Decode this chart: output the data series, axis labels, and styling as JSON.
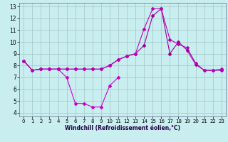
{
  "xlabel": "Windchill (Refroidissement éolien,°C)",
  "bg_color": "#c8eef0",
  "grid_color": "#aacccc",
  "line_color1": "#cc00cc",
  "line_color2": "#990099",
  "line_color3": "#bb00bb",
  "xlim": [
    -0.5,
    23.5
  ],
  "ylim": [
    3.7,
    13.3
  ],
  "yticks": [
    4,
    5,
    6,
    7,
    8,
    9,
    10,
    11,
    12,
    13
  ],
  "xticks": [
    0,
    1,
    2,
    3,
    4,
    5,
    6,
    7,
    8,
    9,
    10,
    11,
    12,
    13,
    14,
    15,
    16,
    17,
    18,
    19,
    20,
    21,
    22,
    23
  ],
  "line1_x": [
    0,
    1,
    2,
    3,
    4,
    5,
    6,
    7,
    8,
    9,
    10,
    11
  ],
  "line1_y": [
    8.4,
    7.6,
    7.7,
    7.7,
    7.7,
    7.0,
    4.8,
    4.8,
    4.5,
    4.5,
    6.3,
    7.0
  ],
  "line2_x": [
    0,
    1,
    2,
    3,
    4,
    5,
    6,
    7,
    8,
    9,
    10,
    11,
    12,
    13,
    14,
    15,
    16,
    17,
    18,
    19,
    20,
    21,
    22,
    23
  ],
  "line2_y": [
    8.4,
    7.6,
    7.7,
    7.7,
    7.7,
    7.7,
    7.7,
    7.7,
    7.7,
    7.7,
    8.0,
    8.5,
    8.8,
    9.0,
    9.7,
    12.2,
    12.8,
    9.0,
    10.0,
    9.3,
    8.1,
    7.6,
    7.6,
    7.6
  ],
  "line3_x": [
    0,
    1,
    2,
    3,
    4,
    5,
    6,
    7,
    8,
    9,
    10,
    11,
    12,
    13,
    14,
    15,
    16,
    17,
    18,
    19,
    20,
    21,
    22,
    23
  ],
  "line3_y": [
    8.4,
    7.6,
    7.7,
    7.7,
    7.7,
    7.7,
    7.7,
    7.7,
    7.7,
    7.7,
    8.0,
    8.5,
    8.8,
    9.0,
    11.1,
    12.8,
    12.8,
    10.2,
    9.8,
    9.5,
    8.2,
    7.6,
    7.6,
    7.7
  ]
}
